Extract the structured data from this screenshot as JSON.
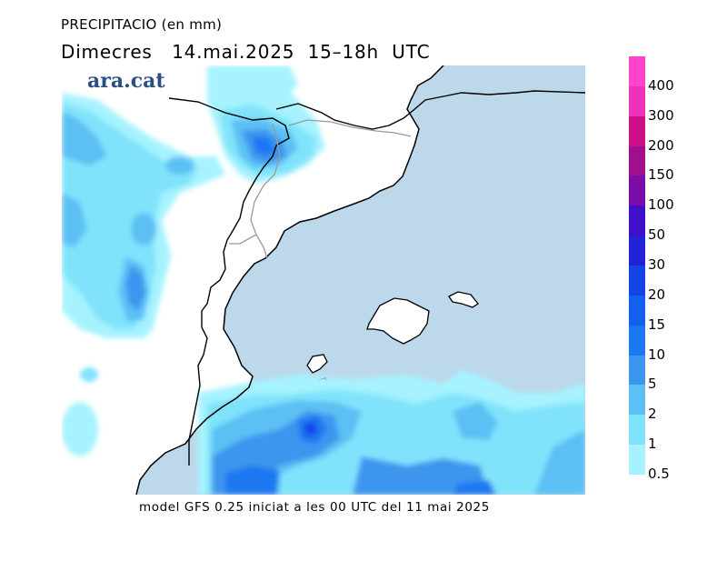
{
  "header": {
    "title": "PRECIPITACIO (en mm)",
    "subtitle": "Dimecres   14.mai.2025  15–18h  UTC"
  },
  "logo": {
    "text": "ara.cat"
  },
  "footer": {
    "text": "model GFS 0.25 iniciat a les 00 UTC del 11 mai 2025"
  },
  "legend": {
    "items": [
      {
        "label": "400",
        "color": "#ff44cc"
      },
      {
        "label": "300",
        "color": "#ee33bb"
      },
      {
        "label": "200",
        "color": "#cc1188"
      },
      {
        "label": "150",
        "color": "#a0108a"
      },
      {
        "label": "100",
        "color": "#7a0da8"
      },
      {
        "label": "50",
        "color": "#3f10c8"
      },
      {
        "label": "30",
        "color": "#2222d8"
      },
      {
        "label": "20",
        "color": "#1244e6"
      },
      {
        "label": "15",
        "color": "#1360ee"
      },
      {
        "label": "10",
        "color": "#1a78f2"
      },
      {
        "label": "5",
        "color": "#3d95ee"
      },
      {
        "label": "2",
        "color": "#5cc0f4"
      },
      {
        "label": "1",
        "color": "#80e3fb"
      },
      {
        "label": "0.5",
        "color": "#a6f3ff"
      }
    ]
  },
  "map_colors": {
    "sea": "#bcd8ea",
    "land": "#ffffff",
    "level_1": "#a6f3ff",
    "level_2": "#80e3fb",
    "level_3": "#5cc0f4",
    "level_4": "#3d95ee",
    "level_5": "#1a78f2",
    "level_6": "#1244e6"
  }
}
